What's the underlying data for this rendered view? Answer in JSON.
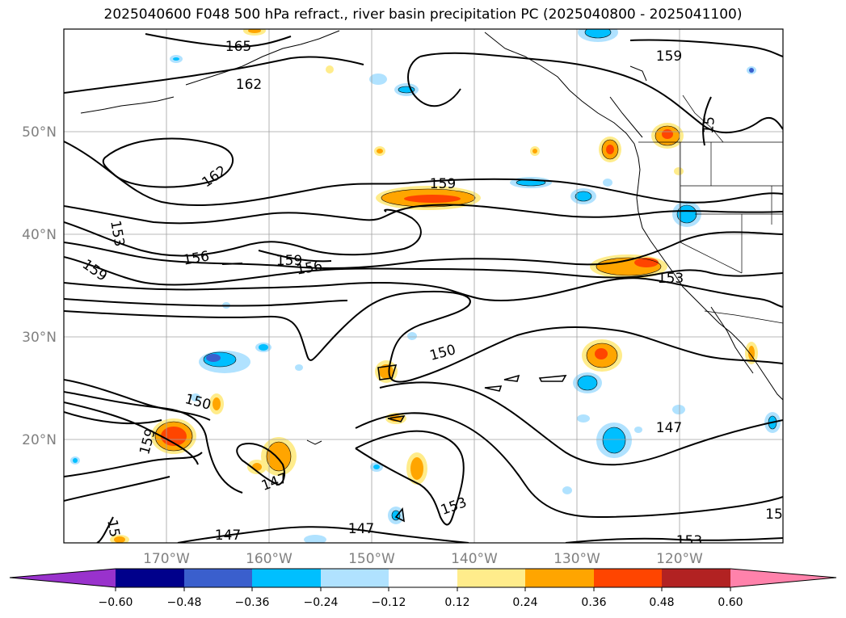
{
  "title": "2025040600 F048 500 hPa refract., river basin precipitation PC (2025040800 - 2025041100)",
  "lat_labels": [
    "50°N",
    "40°N",
    "30°N",
    "20°N"
  ],
  "lon_labels": [
    "170°W",
    "160°W",
    "150°W",
    "140°W",
    "130°W",
    "120°W"
  ],
  "contour_labels": [
    "165",
    "162",
    "159",
    "159",
    "162",
    "153",
    "156",
    "159",
    "156",
    "159",
    "153",
    "150",
    "150",
    "159",
    "147",
    "147",
    "147",
    "147",
    "153",
    "153",
    "15",
    "15",
    "15"
  ],
  "colorbar": {
    "ticks": [
      "−0.60",
      "−0.48",
      "−0.36",
      "−0.24",
      "−0.12",
      "0.12",
      "0.24",
      "0.36",
      "0.48",
      "0.60"
    ],
    "colors": [
      "#9932cc",
      "#00008b",
      "#3a5fcd",
      "#00bfff",
      "#b0e2ff",
      "#ffffff",
      "#ffec8b",
      "#ffa500",
      "#ff4500",
      "#b22222",
      "#ff82ab"
    ]
  }
}
